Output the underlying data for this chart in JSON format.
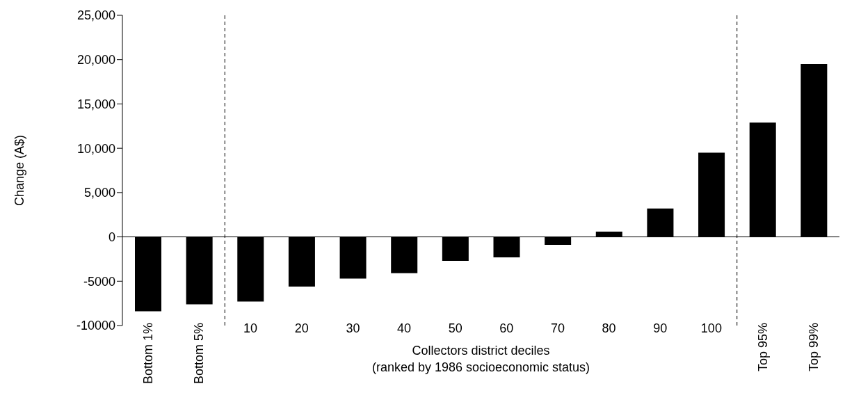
{
  "chart_data": {
    "type": "bar",
    "ylabel": "Change (A$)",
    "xlabel": "Collectors district deciles\n(ranked by 1986 socioeconomic status)",
    "categories": [
      "Bottom 1%",
      "Bottom 5%",
      "10",
      "20",
      "30",
      "40",
      "50",
      "60",
      "70",
      "80",
      "90",
      "100",
      "Top 95%",
      "Top 99%"
    ],
    "values": [
      -8400,
      -7600,
      -7300,
      -5600,
      -4700,
      -4100,
      -2700,
      -2300,
      -900,
      600,
      3200,
      9500,
      12900,
      19500
    ],
    "color": "#000000",
    "ylim": [
      -10000,
      25000
    ],
    "yticks": [
      -10000,
      -5000,
      0,
      {
        "value": 5000,
        "label": "5,000"
      },
      {
        "value": 10000,
        "label": "10,000"
      },
      {
        "value": 15000,
        "label": "15,000"
      },
      {
        "value": 20000,
        "label": "20,000"
      },
      {
        "value": 25000,
        "label": "25,000"
      }
    ],
    "grid": false
  }
}
